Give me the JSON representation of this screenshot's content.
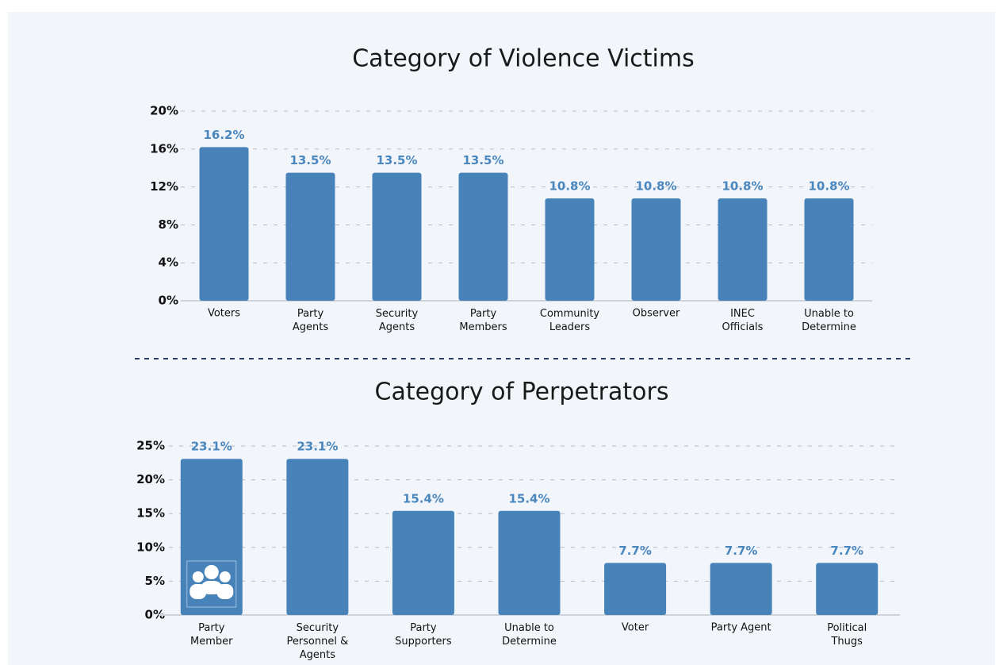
{
  "chart_data": [
    {
      "type": "bar",
      "title": "Category of Violence Victims",
      "categories": [
        "Voters",
        "Party\nAgents",
        "Security\nAgents",
        "Party\nMembers",
        "Community\nLeaders",
        "Observer",
        "INEC\nOfficials",
        "Unable to\nDetermine"
      ],
      "values": [
        16.2,
        13.5,
        13.5,
        13.5,
        10.8,
        10.8,
        10.8,
        10.8
      ],
      "value_labels": [
        "16.2%",
        "13.5%",
        "13.5%",
        "13.5%",
        "10.8%",
        "10.8%",
        "10.8%",
        "10.8%"
      ],
      "color": "#4783b9",
      "ylim": [
        0,
        20
      ],
      "yticks": [
        {
          "value": 0,
          "label": "0%"
        },
        {
          "value": 4,
          "label": "4%"
        },
        {
          "value": 8,
          "label": "8%"
        },
        {
          "value": 12,
          "label": "12%"
        },
        {
          "value": 16,
          "label": "16%"
        },
        {
          "value": 20,
          "label": "20%"
        }
      ],
      "grid": true
    },
    {
      "type": "bar",
      "title": "Category of Perpetrators",
      "categories": [
        "Party\nMember",
        "Security\nPersonnel &\nAgents",
        "Party\nSupporters",
        "Unable to\nDetermine",
        "Voter",
        "Party Agent",
        "Political\nThugs"
      ],
      "values": [
        23.1,
        23.1,
        15.4,
        15.4,
        7.7,
        7.7,
        7.7
      ],
      "value_labels": [
        "23.1%",
        "23.1%",
        "15.4%",
        "15.4%",
        "7.7%",
        "7.7%",
        "7.7%"
      ],
      "color": "#4783b9",
      "ylim": [
        0,
        25
      ],
      "yticks": [
        {
          "value": 0,
          "label": "0%"
        },
        {
          "value": 5,
          "label": "5%"
        },
        {
          "value": 10,
          "label": "10%"
        },
        {
          "value": 15,
          "label": "15%"
        },
        {
          "value": 20,
          "label": "20%"
        },
        {
          "value": 25,
          "label": "25%"
        }
      ],
      "grid": true
    }
  ]
}
